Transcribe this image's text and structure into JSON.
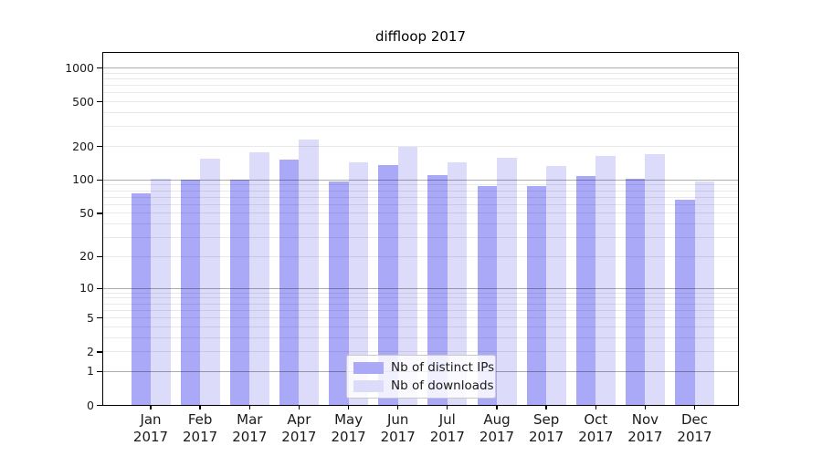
{
  "chart_data": {
    "type": "bar",
    "title": "diffloop 2017",
    "xlabel": "",
    "ylabel": "",
    "categories": [
      "Jan 2017",
      "Feb 2017",
      "Mar 2017",
      "Apr 2017",
      "May 2017",
      "Jun 2017",
      "Jul 2017",
      "Aug 2017",
      "Sep 2017",
      "Oct 2017",
      "Nov 2017",
      "Dec 2017"
    ],
    "series": [
      {
        "name": "Nb of distinct IPs",
        "color": "#a9a9f8",
        "values": [
          75,
          100,
          100,
          150,
          97,
          135,
          109,
          88,
          87,
          108,
          101,
          66
        ]
      },
      {
        "name": "Nb of downloads",
        "color": "#dcdbfa",
        "values": [
          101,
          155,
          176,
          227,
          143,
          197,
          143,
          157,
          133,
          162,
          168,
          97
        ]
      }
    ],
    "y_axis": {
      "scale": "log1p",
      "tick_values": [
        0,
        1,
        2,
        5,
        10,
        20,
        50,
        100,
        200,
        500,
        1000
      ],
      "tick_labels": [
        "0",
        "1",
        "2",
        "5",
        "10",
        "20",
        "50",
        "100",
        "200",
        "500",
        "1000"
      ],
      "major_gridlines": [
        1,
        10,
        100,
        1000
      ],
      "minor_gridlines": [
        2,
        3,
        4,
        5,
        6,
        7,
        8,
        9,
        20,
        30,
        40,
        50,
        60,
        70,
        80,
        90,
        200,
        300,
        400,
        500,
        600,
        700,
        800,
        900
      ],
      "ylim": [
        0,
        1347
      ]
    },
    "grid": "horizontal",
    "legend_position": "lower-center",
    "colors": {
      "grid_major": "rgba(0,0,0,0.32)",
      "grid_minor": "rgba(0,0,0,0.085)",
      "spine": "#000000",
      "axis_text": "#1a1a1a",
      "legend_border": "#c9c9c9"
    }
  }
}
